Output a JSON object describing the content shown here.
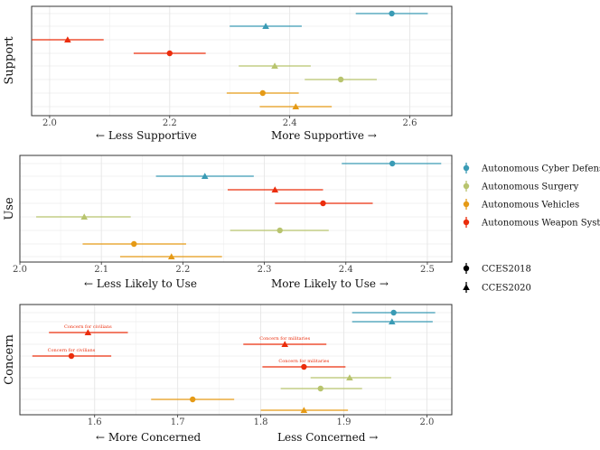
{
  "colors": {
    "Autonomous Cyber Defense": "#3a9bb5",
    "Autonomous Surgery": "#b8c46e",
    "Autonomous Vehicles": "#e59a16",
    "Autonomous Weapon Systems": "#eb2d0c"
  },
  "legend": {
    "categories": [
      "Autonomous Cyber Defense",
      "Autonomous Surgery",
      "Autonomous Vehicles",
      "Autonomous Weapon Systems"
    ],
    "surveys": [
      {
        "label": "CCES2018",
        "shape": "circle"
      },
      {
        "label": "CCES2020",
        "shape": "triangle"
      }
    ]
  },
  "chart_data": [
    {
      "type": "scatter",
      "subtype": "point-range",
      "title": "Support",
      "xlim": [
        1.97,
        2.67
      ],
      "xticks": [
        2.0,
        2.2,
        2.4,
        2.6
      ],
      "xtick_labels": [
        "2.0",
        "2.2",
        "2.4",
        "2.6"
      ],
      "left_label": "←   Less Supportive",
      "right_label": "More Supportive   →",
      "points": [
        {
          "category": "Autonomous Cyber Defense",
          "survey": "CCES2018",
          "estimate": 2.57,
          "low": 2.51,
          "high": 2.63
        },
        {
          "category": "Autonomous Cyber Defense",
          "survey": "CCES2020",
          "estimate": 2.36,
          "low": 2.3,
          "high": 2.42
        },
        {
          "category": "Autonomous Weapon Systems",
          "survey": "CCES2020",
          "estimate": 2.03,
          "low": 1.97,
          "high": 2.09
        },
        {
          "category": "Autonomous Weapon Systems",
          "survey": "CCES2018",
          "estimate": 2.2,
          "low": 2.14,
          "high": 2.26
        },
        {
          "category": "Autonomous Surgery",
          "survey": "CCES2020",
          "estimate": 2.375,
          "low": 2.315,
          "high": 2.435
        },
        {
          "category": "Autonomous Surgery",
          "survey": "CCES2018",
          "estimate": 2.485,
          "low": 2.425,
          "high": 2.545
        },
        {
          "category": "Autonomous Vehicles",
          "survey": "CCES2018",
          "estimate": 2.355,
          "low": 2.295,
          "high": 2.415
        },
        {
          "category": "Autonomous Vehicles",
          "survey": "CCES2020",
          "estimate": 2.41,
          "low": 2.35,
          "high": 2.47
        }
      ]
    },
    {
      "type": "scatter",
      "subtype": "point-range",
      "title": "Use",
      "xlim": [
        2.0,
        2.53
      ],
      "xticks": [
        2.0,
        2.1,
        2.2,
        2.3,
        2.4,
        2.5
      ],
      "xtick_labels": [
        "2.0",
        "2.1",
        "2.2",
        "2.3",
        "2.4",
        "2.5"
      ],
      "left_label": "←   Less Likely to Use",
      "right_label": "More Likely to Use   →",
      "points": [
        {
          "category": "Autonomous Cyber Defense",
          "survey": "CCES2018",
          "estimate": 2.457,
          "low": 2.395,
          "high": 2.517
        },
        {
          "category": "Autonomous Cyber Defense",
          "survey": "CCES2020",
          "estimate": 2.227,
          "low": 2.167,
          "high": 2.287
        },
        {
          "category": "Autonomous Weapon Systems",
          "survey": "CCES2020",
          "estimate": 2.313,
          "low": 2.255,
          "high": 2.372
        },
        {
          "category": "Autonomous Weapon Systems",
          "survey": "CCES2018",
          "estimate": 2.372,
          "low": 2.313,
          "high": 2.433
        },
        {
          "category": "Autonomous Surgery",
          "survey": "CCES2020",
          "estimate": 2.079,
          "low": 2.02,
          "high": 2.136
        },
        {
          "category": "Autonomous Surgery",
          "survey": "CCES2018",
          "estimate": 2.319,
          "low": 2.258,
          "high": 2.379
        },
        {
          "category": "Autonomous Vehicles",
          "survey": "CCES2018",
          "estimate": 2.14,
          "low": 2.077,
          "high": 2.204
        },
        {
          "category": "Autonomous Vehicles",
          "survey": "CCES2020",
          "estimate": 2.186,
          "low": 2.123,
          "high": 2.248
        }
      ]
    },
    {
      "type": "scatter",
      "subtype": "point-range",
      "title": "Concern",
      "xlim": [
        1.51,
        2.03
      ],
      "xticks": [
        1.6,
        1.7,
        1.8,
        1.9,
        2.0
      ],
      "xtick_labels": [
        "1.6",
        "1.7",
        "1.8",
        "1.9",
        "2.0"
      ],
      "left_label": "←   More Concerned",
      "right_label": "Less Concerned   →",
      "points": [
        {
          "category": "Autonomous Cyber Defense",
          "survey": "CCES2018",
          "estimate": 1.96,
          "low": 1.91,
          "high": 2.01
        },
        {
          "category": "Autonomous Cyber Defense",
          "survey": "CCES2020",
          "estimate": 1.958,
          "low": 1.91,
          "high": 2.007
        },
        {
          "category": "Autonomous Weapon Systems",
          "survey": "CCES2020",
          "estimate": 1.592,
          "low": 1.545,
          "high": 1.64,
          "annotation": "Concern for civilians"
        },
        {
          "category": "Autonomous Weapon Systems",
          "survey": "CCES2020",
          "estimate": 1.829,
          "low": 1.779,
          "high": 1.879,
          "annotation": "Concern for militaries"
        },
        {
          "category": "Autonomous Weapon Systems",
          "survey": "CCES2018",
          "estimate": 1.572,
          "low": 1.525,
          "high": 1.62,
          "annotation": "Concern for civilians"
        },
        {
          "category": "Autonomous Weapon Systems",
          "survey": "CCES2018",
          "estimate": 1.852,
          "low": 1.802,
          "high": 1.902,
          "annotation": "Concern for militaries"
        },
        {
          "category": "Autonomous Surgery",
          "survey": "CCES2020",
          "estimate": 1.907,
          "low": 1.86,
          "high": 1.957
        },
        {
          "category": "Autonomous Surgery",
          "survey": "CCES2018",
          "estimate": 1.872,
          "low": 1.824,
          "high": 1.922
        },
        {
          "category": "Autonomous Vehicles",
          "survey": "CCES2018",
          "estimate": 1.718,
          "low": 1.668,
          "high": 1.768
        },
        {
          "category": "Autonomous Vehicles",
          "survey": "CCES2020",
          "estimate": 1.852,
          "low": 1.8,
          "high": 1.905
        }
      ]
    }
  ]
}
